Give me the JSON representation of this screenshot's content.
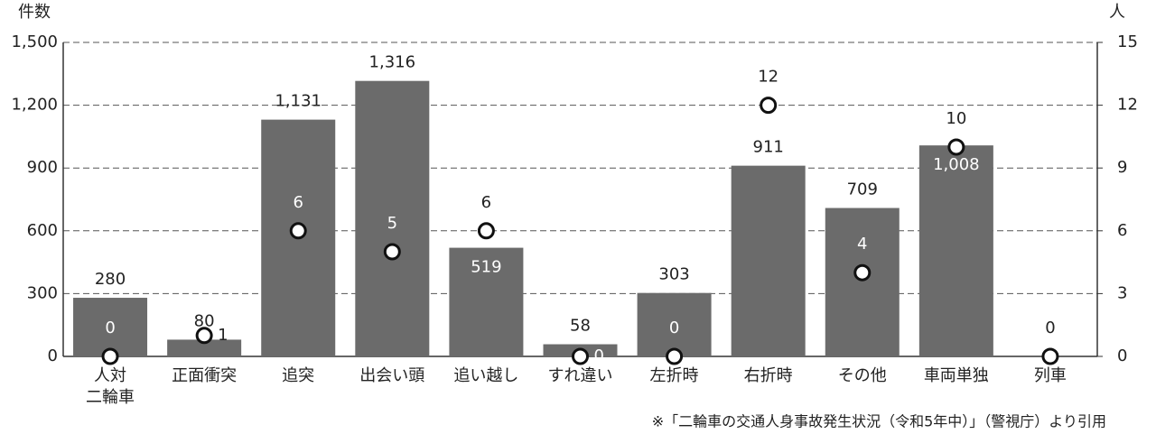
{
  "chart_data": {
    "type": "bar+scatter",
    "y_label": "件数",
    "y2_label": "人",
    "source": "※「二輪車の交通人身事故発生状況（令和5年中）」（警視庁）より引用",
    "categories": [
      "人対\n二輪車",
      "正面衝突",
      "追突",
      "出会い頭",
      "追い越し",
      "すれ違い",
      "左折時",
      "右折時",
      "その他",
      "車両単独",
      "列車"
    ],
    "series": [
      {
        "type": "bar",
        "color": "#6b6b6b",
        "values": [
          280,
          80,
          1131,
          1316,
          519,
          58,
          303,
          911,
          709,
          1008,
          null
        ],
        "value_labels": [
          "280",
          "80",
          "1,131",
          "1,316",
          "519",
          "58",
          "303",
          "911",
          "709",
          "1,008",
          null
        ]
      },
      {
        "type": "scatter",
        "axis": "y2",
        "color": "#ffffff",
        "values": [
          0,
          1,
          6,
          5,
          6,
          0,
          0,
          12,
          4,
          10,
          0
        ]
      }
    ],
    "ylim": [
      0,
      1500
    ],
    "yticks": [
      0,
      300,
      600,
      900,
      {
        "value": 1200,
        "label": "1,200"
      },
      {
        "value": 1500,
        "label": "1,500"
      }
    ],
    "y2lim": [
      0,
      15
    ],
    "y2ticks": [
      0,
      3,
      6,
      9,
      12,
      15
    ],
    "grid": true
  }
}
